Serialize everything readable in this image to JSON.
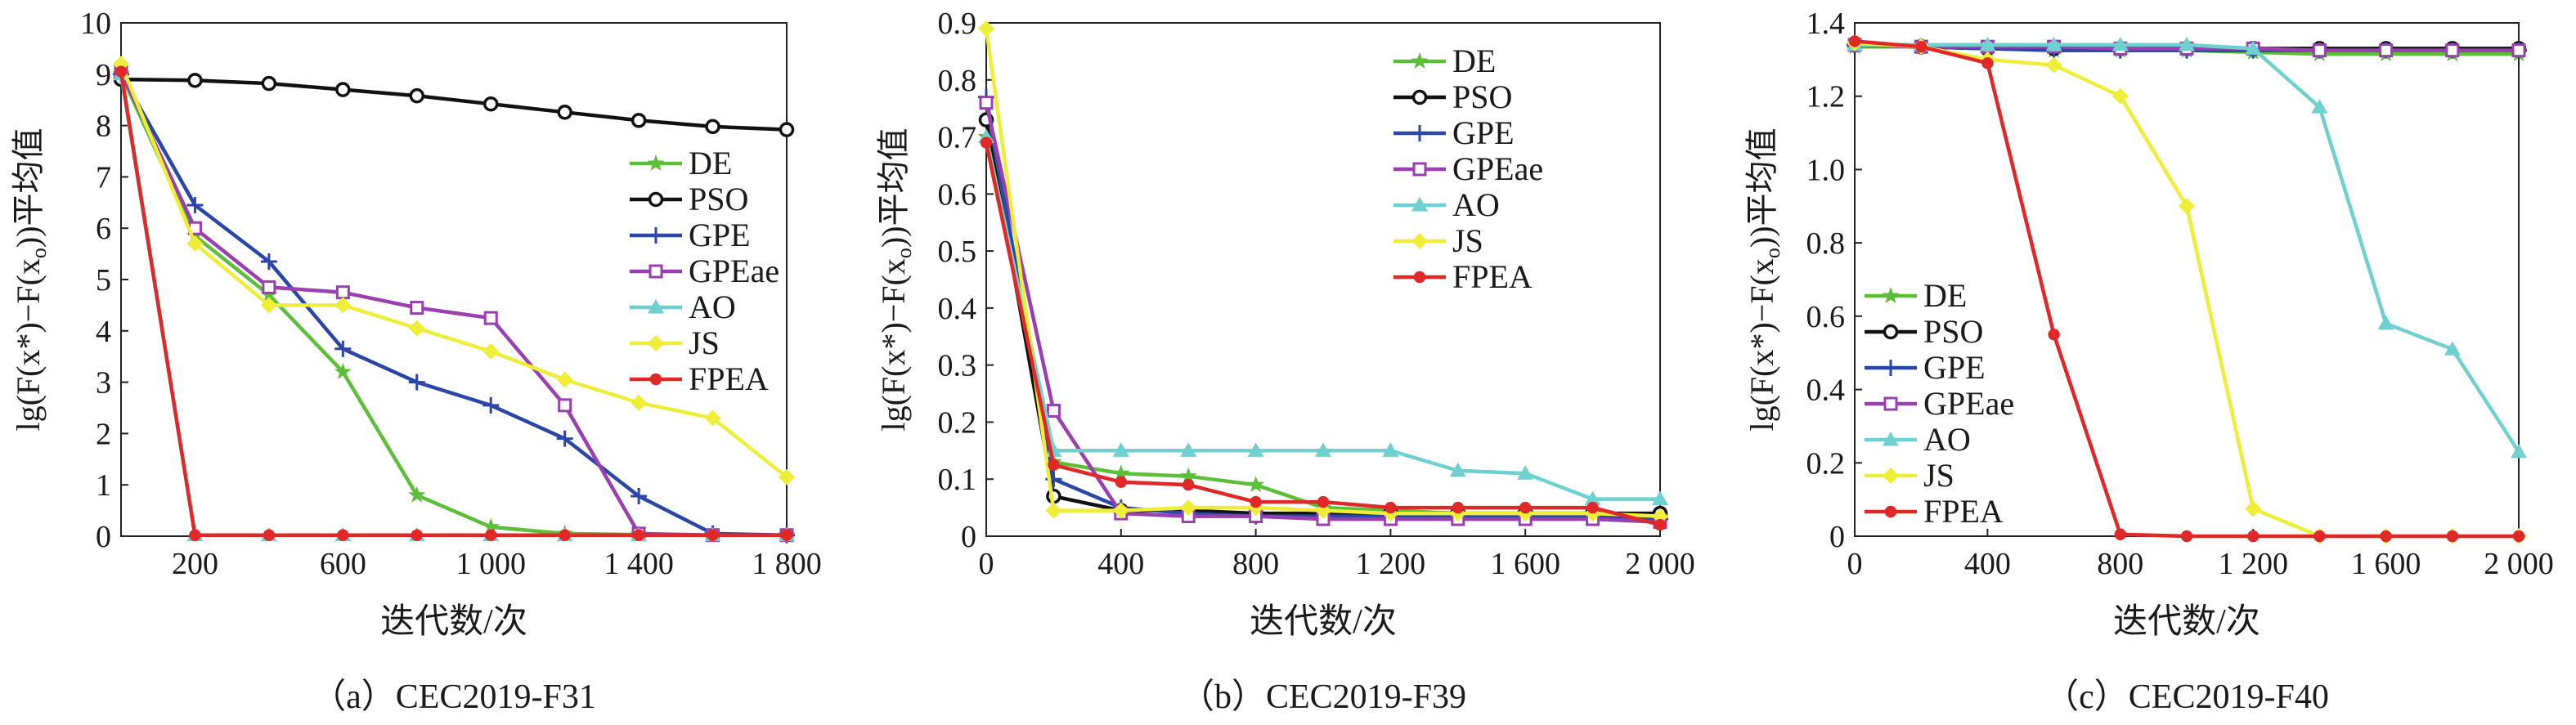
{
  "ylabel_prefix": "lg(",
  "ylabel_mid": "F(x*)−F(x",
  "ylabel_sub": "o",
  "ylabel_suffix": "))平均值",
  "chart_data": [
    {
      "type": "line",
      "caption": "（a）CEC2019-F31",
      "xlabel": "迭代数/次",
      "xlim": [
        0,
        1800
      ],
      "ylim": [
        0,
        10
      ],
      "xticks": [
        200,
        600,
        1000,
        1400,
        1800
      ],
      "xtick_labels": [
        "200",
        "600",
        "1 000",
        "1 400",
        "1 800"
      ],
      "yticks": [
        0,
        1,
        2,
        3,
        4,
        5,
        6,
        7,
        8,
        9,
        10
      ],
      "ytick_labels": [
        "0",
        "1",
        "2",
        "3",
        "4",
        "5",
        "6",
        "7",
        "8",
        "9",
        "10"
      ],
      "legend_position": "right",
      "x": [
        0,
        200,
        400,
        600,
        800,
        1000,
        1200,
        1400,
        1600,
        1800
      ],
      "series": [
        {
          "name": "DE",
          "color": "#5cbf38",
          "marker": "star",
          "values": [
            9.0,
            5.85,
            4.7,
            3.2,
            0.8,
            0.18,
            0.05,
            0.03,
            0.02,
            0.02
          ]
        },
        {
          "name": "PSO",
          "color": "#111111",
          "marker": "circle",
          "values": [
            8.9,
            8.88,
            8.82,
            8.7,
            8.58,
            8.42,
            8.26,
            8.1,
            7.98,
            7.92
          ]
        },
        {
          "name": "GPE",
          "color": "#2a46a8",
          "marker": "plus",
          "values": [
            9.0,
            6.45,
            5.35,
            3.65,
            3.0,
            2.55,
            1.9,
            0.78,
            0.05,
            0.02
          ]
        },
        {
          "name": "GPEae",
          "color": "#9a3fb0",
          "marker": "square",
          "values": [
            9.05,
            6.0,
            4.85,
            4.75,
            4.45,
            4.25,
            2.55,
            0.05,
            0.02,
            0.02
          ]
        },
        {
          "name": "AO",
          "color": "#6fd0d0",
          "marker": "triangle",
          "values": [
            9.0,
            0.02,
            0.02,
            0.02,
            0.02,
            0.02,
            0.02,
            0.02,
            0.02,
            0.02
          ]
        },
        {
          "name": "JS",
          "color": "#eeee38",
          "marker": "diamond",
          "values": [
            9.2,
            5.7,
            4.5,
            4.5,
            4.05,
            3.6,
            3.05,
            2.6,
            2.3,
            1.15
          ]
        },
        {
          "name": "FPEA",
          "color": "#e02828",
          "marker": "dot",
          "values": [
            9.05,
            0.02,
            0.02,
            0.02,
            0.02,
            0.02,
            0.02,
            0.02,
            0.02,
            0.02
          ]
        }
      ]
    },
    {
      "type": "line",
      "caption": "（b）CEC2019-F39",
      "xlabel": "迭代数/次",
      "xlim": [
        0,
        2000
      ],
      "ylim": [
        0,
        0.9
      ],
      "xticks": [
        0,
        400,
        800,
        1200,
        1600,
        2000
      ],
      "xtick_labels": [
        "0",
        "400",
        "800",
        "1 200",
        "1 600",
        "2 000"
      ],
      "yticks": [
        0,
        0.1,
        0.2,
        0.3,
        0.4,
        0.5,
        0.6,
        0.7,
        0.8,
        0.9
      ],
      "ytick_labels": [
        "0",
        "0.1",
        "0.2",
        "0.3",
        "0.4",
        "0.5",
        "0.6",
        "0.7",
        "0.8",
        "0.9"
      ],
      "legend_position": "top-right",
      "x": [
        0,
        200,
        400,
        600,
        800,
        1000,
        1200,
        1400,
        1600,
        1800,
        2000
      ],
      "series": [
        {
          "name": "DE",
          "color": "#5cbf38",
          "marker": "star",
          "values": [
            0.7,
            0.13,
            0.11,
            0.105,
            0.09,
            0.05,
            0.045,
            0.04,
            0.04,
            0.04,
            0.035
          ]
        },
        {
          "name": "PSO",
          "color": "#111111",
          "marker": "circle",
          "values": [
            0.73,
            0.07,
            0.045,
            0.045,
            0.04,
            0.04,
            0.04,
            0.04,
            0.04,
            0.04,
            0.04
          ]
        },
        {
          "name": "GPE",
          "color": "#2a46a8",
          "marker": "plus",
          "values": [
            0.77,
            0.1,
            0.05,
            0.04,
            0.035,
            0.035,
            0.035,
            0.035,
            0.035,
            0.035,
            0.03
          ]
        },
        {
          "name": "GPEae",
          "color": "#9a3fb0",
          "marker": "square",
          "values": [
            0.76,
            0.22,
            0.04,
            0.035,
            0.035,
            0.03,
            0.03,
            0.03,
            0.03,
            0.03,
            0.025
          ]
        },
        {
          "name": "AO",
          "color": "#6fd0d0",
          "marker": "triangle",
          "values": [
            0.7,
            0.15,
            0.15,
            0.15,
            0.15,
            0.15,
            0.15,
            0.115,
            0.11,
            0.065,
            0.065
          ]
        },
        {
          "name": "JS",
          "color": "#eeee38",
          "marker": "diamond",
          "values": [
            0.89,
            0.045,
            0.045,
            0.05,
            0.05,
            0.045,
            0.04,
            0.04,
            0.04,
            0.04,
            0.035
          ]
        },
        {
          "name": "FPEA",
          "color": "#e02828",
          "marker": "dot",
          "values": [
            0.69,
            0.125,
            0.095,
            0.09,
            0.06,
            0.06,
            0.05,
            0.05,
            0.05,
            0.05,
            0.02
          ]
        }
      ]
    },
    {
      "type": "line",
      "caption": "（c）CEC2019-F40",
      "xlabel": "迭代数/次",
      "xlim": [
        0,
        2000
      ],
      "ylim": [
        0,
        1.4
      ],
      "xticks": [
        0,
        400,
        800,
        1200,
        1600,
        2000
      ],
      "xtick_labels": [
        "0",
        "400",
        "800",
        "1 200",
        "1 600",
        "2 000"
      ],
      "yticks": [
        0,
        0.2,
        0.4,
        0.6,
        0.8,
        1.0,
        1.2,
        1.4
      ],
      "ytick_labels": [
        "0",
        "0.2",
        "0.4",
        "0.6",
        "0.8",
        "1.0",
        "1.2",
        "1.4"
      ],
      "legend_position": "left",
      "x": [
        0,
        200,
        400,
        600,
        800,
        1000,
        1200,
        1400,
        1600,
        1800,
        2000
      ],
      "series": [
        {
          "name": "DE",
          "color": "#5cbf38",
          "marker": "star",
          "values": [
            1.335,
            1.335,
            1.33,
            1.325,
            1.325,
            1.325,
            1.32,
            1.315,
            1.315,
            1.315,
            1.315
          ]
        },
        {
          "name": "PSO",
          "color": "#111111",
          "marker": "circle",
          "values": [
            1.34,
            1.335,
            1.33,
            1.33,
            1.33,
            1.33,
            1.33,
            1.33,
            1.33,
            1.33,
            1.33
          ]
        },
        {
          "name": "GPE",
          "color": "#2a46a8",
          "marker": "plus",
          "values": [
            1.34,
            1.335,
            1.33,
            1.325,
            1.325,
            1.325,
            1.325,
            1.325,
            1.325,
            1.325,
            1.325
          ]
        },
        {
          "name": "GPEae",
          "color": "#9a3fb0",
          "marker": "square",
          "values": [
            1.34,
            1.335,
            1.335,
            1.335,
            1.33,
            1.33,
            1.33,
            1.325,
            1.325,
            1.325,
            1.325
          ]
        },
        {
          "name": "AO",
          "color": "#6fd0d0",
          "marker": "triangle",
          "values": [
            1.34,
            1.34,
            1.34,
            1.34,
            1.34,
            1.34,
            1.33,
            1.17,
            0.58,
            0.51,
            0.23
          ]
        },
        {
          "name": "JS",
          "color": "#eeee38",
          "marker": "diamond",
          "values": [
            1.345,
            1.335,
            1.3,
            1.285,
            1.2,
            0.9,
            0.075,
            0.0,
            0.0,
            0.0,
            0.0
          ]
        },
        {
          "name": "FPEA",
          "color": "#e02828",
          "marker": "dot",
          "values": [
            1.35,
            1.335,
            1.29,
            0.55,
            0.005,
            0.0,
            0.0,
            0.0,
            0.0,
            0.0,
            0.0
          ]
        }
      ]
    }
  ]
}
